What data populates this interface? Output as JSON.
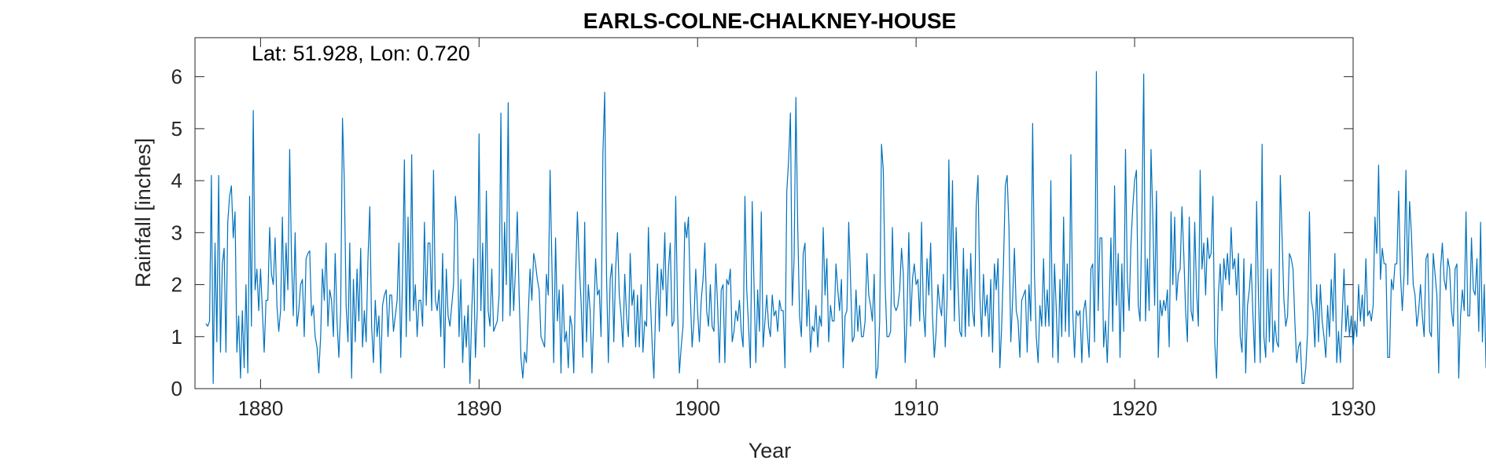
{
  "chart_data": {
    "type": "line",
    "title": "EARLS-COLNE-CHALKNEY-HOUSE",
    "annotation": "Lat: 51.928, Lon: 0.720",
    "xlabel": "Year",
    "ylabel": "Rainfall [inches]",
    "xlim": [
      1877.0,
      1930.0
    ],
    "ylim": [
      0,
      6.75
    ],
    "xticks": [
      1880,
      1890,
      1900,
      1910,
      1920,
      1930
    ],
    "yticks": [
      0,
      1,
      2,
      3,
      4,
      5,
      6
    ],
    "grid": false,
    "line_color": "#0072BD",
    "series": [
      {
        "x_start": 1877.5,
        "x_step": 0.0833333,
        "values": [
          1.25,
          1.2,
          1.3,
          4.1,
          0.1,
          2.8,
          0.9,
          4.1,
          0.7,
          2.4,
          2.7,
          0.7,
          3.2,
          3.7,
          3.9,
          2.9,
          3.4,
          0.7,
          1.4,
          0.2,
          1.5,
          0.4,
          2.0,
          0.3,
          3.7,
          1.2,
          5.35,
          1.9,
          2.3,
          1.5,
          2.3,
          1.5,
          0.7,
          1.7,
          1.7,
          3.1,
          2.2,
          2.0,
          2.9,
          1.6,
          1.1,
          1.5,
          3.3,
          1.5,
          2.8,
          1.9,
          4.6,
          2.5,
          1.4,
          3.0,
          1.2,
          1.5,
          2.0,
          2.1,
          1.0,
          2.5,
          2.6,
          2.65,
          1.4,
          1.6,
          1.0,
          0.8,
          0.3,
          1.0,
          2.3,
          1.7,
          2.8,
          1.2,
          1.9,
          1.7,
          1.0,
          2.6,
          1.3,
          0.6,
          1.5,
          5.2,
          4.0,
          1.6,
          0.9,
          2.8,
          0.2,
          2.1,
          0.9,
          2.3,
          1.3,
          2.7,
          0.8,
          1.5,
          0.9,
          2.5,
          3.5,
          1.2,
          0.5,
          1.7,
          1.0,
          1.4,
          0.3,
          1.6,
          1.8,
          1.9,
          1.0,
          1.8,
          1.8,
          1.1,
          1.4,
          1.7,
          2.8,
          0.6,
          2.2,
          4.4,
          1.0,
          3.3,
          1.3,
          4.5,
          1.5,
          2.0,
          1.0,
          1.7,
          1.7,
          1.2,
          3.2,
          1.6,
          2.8,
          2.8,
          1.5,
          4.2,
          1.7,
          1.5,
          1.9,
          1.0,
          2.6,
          0.4,
          2.3,
          1.4,
          1.2,
          1.6,
          2.0,
          3.7,
          3.2,
          1.0,
          2.1,
          0.5,
          1.4,
          0.8,
          1.6,
          0.1,
          1.5,
          2.5,
          0.6,
          1.5,
          4.9,
          1.5,
          2.8,
          0.8,
          3.8,
          1.5,
          1.2,
          2.3,
          1.1,
          1.2,
          1.3,
          1.8,
          5.3,
          1.3,
          3.2,
          2.0,
          5.5,
          1.4,
          2.6,
          1.5,
          2.3,
          3.4,
          1.8,
          0.6,
          0.2,
          0.7,
          0.5,
          1.4,
          2.3,
          1.7,
          2.6,
          2.4,
          2.1,
          1.9,
          1.0,
          0.9,
          0.8,
          2.2,
          1.8,
          4.2,
          2.4,
          0.5,
          2.9,
          1.3,
          1.9,
          0.3,
          2.0,
          0.9,
          1.1,
          0.4,
          1.4,
          1.2,
          0.3,
          2.1,
          3.4,
          2.4,
          1.7,
          0.6,
          3.2,
          0.9,
          2.0,
          1.5,
          0.3,
          1.4,
          2.5,
          1.8,
          1.9,
          1.0,
          4.5,
          5.7,
          2.2,
          0.5,
          2.1,
          2.4,
          0.9,
          2.3,
          3.0,
          1.8,
          1.4,
          0.8,
          2.2,
          1.4,
          1.0,
          2.6,
          1.6,
          1.9,
          0.8,
          1.8,
          0.8,
          2.0,
          0.7,
          1.3,
          1.2,
          3.1,
          1.8,
          0.9,
          0.2,
          1.6,
          2.4,
          1.1,
          2.3,
          1.9,
          3.0,
          1.4,
          2.3,
          2.8,
          1.2,
          1.3,
          3.7,
          1.5,
          0.3,
          0.8,
          1.2,
          3.2,
          2.9,
          3.3,
          1.8,
          0.8,
          1.3,
          2.3,
          1.5,
          0.9,
          1.7,
          2.1,
          2.8,
          1.5,
          1.2,
          2.0,
          1.2,
          1.1,
          2.4,
          1.6,
          0.5,
          1.9,
          2.0,
          0.5,
          2.1,
          2.0,
          2.3,
          0.9,
          1.1,
          1.5,
          1.3,
          1.7,
          1.1,
          0.8,
          3.7,
          1.9,
          1.2,
          0.4,
          3.6,
          2.0,
          0.5,
          1.9,
          1.1,
          3.4,
          0.8,
          1.3,
          1.8,
          1.2,
          1.0,
          1.8,
          1.4,
          1.5,
          1.1,
          1.7,
          1.5,
          1.5,
          0.4,
          3.8,
          4.4,
          5.3,
          1.6,
          2.5,
          5.6,
          3.1,
          1.4,
          1.0,
          2.6,
          2.8,
          1.2,
          1.9,
          0.7,
          1.2,
          1.1,
          1.6,
          0.8,
          1.4,
          1.2,
          3.1,
          1.8,
          2.5,
          0.9,
          1.6,
          1.3,
          1.3,
          2.4,
          1.9,
          1.5,
          2.1,
          0.4,
          1.4,
          1.5,
          3.2,
          2.1,
          0.9,
          1.0,
          1.9,
          1.1,
          1.6,
          1.0,
          1.0,
          1.3,
          2.6,
          1.8,
          1.6,
          1.3,
          2.2,
          0.2,
          0.4,
          1.3,
          4.7,
          4.2,
          2.0,
          1.0,
          1.0,
          1.1,
          3.1,
          1.6,
          1.5,
          1.6,
          1.9,
          2.7,
          2.2,
          0.5,
          1.4,
          3.0,
          1.2,
          2.1,
          2.4,
          2.0,
          2.1,
          1.3,
          3.2,
          1.5,
          1.0,
          2.5,
          1.8,
          2.8,
          1.4,
          0.6,
          1.1,
          2.0,
          1.6,
          1.4,
          2.2,
          0.8,
          1.7,
          4.4,
          1.9,
          4.0,
          1.3,
          3.1,
          2.0,
          1.1,
          1.0,
          2.7,
          1.0,
          2.3,
          1.2,
          2.6,
          1.5,
          1.2,
          3.5,
          4.1,
          1.8,
          1.0,
          2.2,
          1.4,
          1.8,
          1.0,
          2.1,
          0.7,
          2.4,
          1.9,
          2.5,
          0.4,
          1.2,
          2.4,
          3.9,
          4.1,
          3.1,
          0.9,
          1.7,
          2.7,
          1.5,
          1.3,
          0.6,
          1.7,
          1.8,
          1.9,
          0.7,
          2.0,
          1.3,
          5.1,
          2.2,
          1.0,
          0.5,
          1.6,
          1.2,
          2.5,
          1.2,
          1.9,
          1.2,
          4.0,
          0.6,
          2.4,
          1.5,
          0.5,
          2.1,
          1.0,
          3.3,
          1.1,
          2.4,
          1.0,
          4.5,
          1.5,
          0.6,
          1.5,
          1.4,
          1.5,
          0.5,
          1.5,
          1.7,
          1.1,
          0.6,
          2.3,
          2.4,
          0.9,
          6.1,
          1.5,
          2.9,
          2.9,
          0.8,
          1.3,
          0.5,
          1.6,
          2.9,
          1.1,
          3.9,
          1.6,
          2.6,
          0.6,
          2.4,
          1.1,
          4.6,
          2.1,
          1.5,
          2.8,
          3.5,
          4.0,
          4.2,
          1.6,
          1.3,
          3.3,
          6.05,
          1.3,
          2.5,
          1.5,
          4.6,
          3.3,
          1.6,
          3.8,
          0.6,
          1.7,
          1.4,
          1.7,
          1.5,
          1.9,
          0.8,
          3.4,
          2.0,
          3.3,
          1.7,
          2.2,
          2.3,
          3.5,
          2.6,
          1.5,
          0.9,
          3.3,
          1.5,
          1.3,
          3.2,
          1.9,
          1.2,
          4.2,
          2.3,
          2.8,
          1.8,
          2.9,
          2.5,
          2.6,
          3.7,
          0.9,
          0.2,
          1.8,
          2.4,
          1.5,
          2.5,
          2.1,
          2.6,
          2.0,
          3.1,
          2.3,
          2.5,
          1.8,
          2.6,
          1.0,
          0.7,
          2.5,
          0.3,
          1.6,
          1.9,
          2.4,
          1.4,
          0.5,
          3.6,
          1.8,
          0.5,
          4.7,
          1.0,
          0.6,
          2.3,
          0.9,
          2.3,
          0.7,
          1.3,
          0.9,
          0.8,
          4.1,
          2.9,
          1.7,
          1.2,
          1.4,
          2.6,
          2.5,
          2.3,
          1.3,
          0.5,
          0.8,
          0.9,
          0.1,
          0.1,
          0.4,
          1.1,
          3.4,
          1.7,
          1.5,
          0.8,
          2.0,
          0.9,
          2.0,
          1.3,
          1.0,
          0.6,
          1.6,
          1.0,
          2.1,
          1.3,
          2.6,
          0.5,
          1.1,
          0.5,
          1.4,
          2.3,
          1.1,
          1.6,
          1.0,
          1.4,
          0.8,
          1.3,
          1.0,
          2.0,
          1.3,
          1.8,
          1.2,
          2.5,
          1.4,
          1.5,
          1.3,
          1.6,
          3.3,
          2.6,
          4.3,
          2.1,
          2.7,
          2.4,
          2.4,
          0.6,
          0.6,
          2.1,
          1.9,
          2.4,
          2.4,
          3.8,
          2.2,
          1.5,
          2.2,
          4.2,
          2.0,
          3.6,
          3.0,
          2.0,
          1.8,
          1.2,
          1.5,
          2.0,
          1.4,
          1.0,
          2.5,
          2.6,
          1.1,
          1.0,
          2.6,
          2.2,
          1.8,
          0.3,
          2.3,
          2.8,
          2.1,
          1.9,
          2.5,
          2.3,
          1.5,
          1.2,
          2.3,
          2.4,
          0.2,
          1.4,
          1.9,
          1.5,
          3.4,
          1.4,
          1.4,
          2.9,
          1.9,
          1.8,
          2.5,
          1.1,
          3.2,
          0.9,
          2.0,
          0.4,
          1.9,
          2.0,
          2.8,
          3.0,
          2.8,
          3.5,
          2.4,
          2.6,
          2.2,
          3.7,
          2.4,
          1.8,
          1.2,
          1.9,
          1.0,
          1.8,
          2.2,
          2.2,
          2.3,
          2.3,
          0.7,
          2.5,
          2.0,
          1.5,
          3.4,
          1.7,
          0.5,
          0.1,
          0.1,
          1.9,
          1.3,
          1.0,
          0.9,
          2.0,
          0.9,
          0.8,
          1.4,
          3.3,
          2.7,
          4.3,
          3.7
        ]
      }
    ]
  }
}
